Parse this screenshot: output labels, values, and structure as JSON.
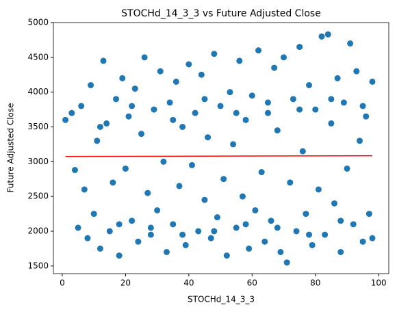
{
  "chart_data": {
    "type": "scatter",
    "title": "STOCHd_14_3_3 vs Future Adjusted Close",
    "xlabel": "STOCHd_14_3_3",
    "ylabel": "Future Adjusted Close",
    "xlim": [
      -2.8,
      103.2
    ],
    "ylim": [
      1390,
      5000
    ],
    "xticks": [
      0,
      20,
      40,
      60,
      80,
      100
    ],
    "yticks": [
      1500,
      2000,
      2500,
      3000,
      3500,
      4000,
      4500,
      5000
    ],
    "points": {
      "color": "#1f77b4",
      "x": [
        1,
        3,
        4,
        5,
        6,
        7,
        8,
        9,
        10,
        11,
        12,
        13,
        14,
        15,
        16,
        17,
        18,
        19,
        20,
        21,
        22,
        23,
        24,
        25,
        26,
        27,
        28,
        29,
        30,
        31,
        32,
        33,
        34,
        35,
        36,
        37,
        38,
        39,
        40,
        41,
        42,
        43,
        44,
        45,
        46,
        47,
        48,
        49,
        50,
        51,
        52,
        53,
        54,
        55,
        56,
        57,
        58,
        59,
        60,
        61,
        62,
        63,
        64,
        65,
        66,
        67,
        68,
        69,
        70,
        71,
        72,
        73,
        74,
        75,
        76,
        77,
        78,
        79,
        80,
        81,
        82,
        83,
        84,
        85,
        86,
        87,
        88,
        89,
        90,
        91,
        92,
        93,
        94,
        95,
        96,
        97,
        98,
        98,
        12,
        22,
        35,
        45,
        55,
        65,
        75,
        85,
        95,
        18,
        28,
        38,
        48,
        58,
        68,
        78,
        88
      ],
      "y": [
        3600,
        3700,
        2880,
        2050,
        3800,
        2600,
        1900,
        4100,
        2250,
        3300,
        1750,
        4450,
        3550,
        2000,
        2700,
        3900,
        1650,
        4200,
        2900,
        3650,
        2150,
        4050,
        1850,
        3400,
        4500,
        2550,
        1950,
        3750,
        2300,
        4300,
        3000,
        1700,
        3850,
        2100,
        4150,
        2650,
        3500,
        1800,
        4400,
        2950,
        3700,
        2000,
        4250,
        2450,
        3350,
        1900,
        4550,
        2200,
        3800,
        2750,
        1650,
        4000,
        3250,
        2050,
        4450,
        2500,
        3600,
        1750,
        3950,
        2300,
        4600,
        2850,
        1850,
        3700,
        2150,
        4350,
        3450,
        1700,
        4500,
        1550,
        2700,
        3900,
        2000,
        4650,
        3150,
        2250,
        4100,
        1800,
        3750,
        2600,
        4800,
        1950,
        4830,
        3550,
        2400,
        4200,
        1700,
        3850,
        2900,
        4700,
        2100,
        4300,
        3300,
        1850,
        3650,
        2250,
        4150,
        1900,
        3500,
        3800,
        3600,
        3900,
        3700,
        3850,
        3750,
        3900,
        3800,
        2100,
        2050,
        1950,
        2000,
        2100,
        2050,
        1950,
        2150
      ]
    },
    "line": {
      "color": "#ff0000",
      "x": [
        1,
        98
      ],
      "y": [
        3075,
        3085
      ]
    }
  }
}
